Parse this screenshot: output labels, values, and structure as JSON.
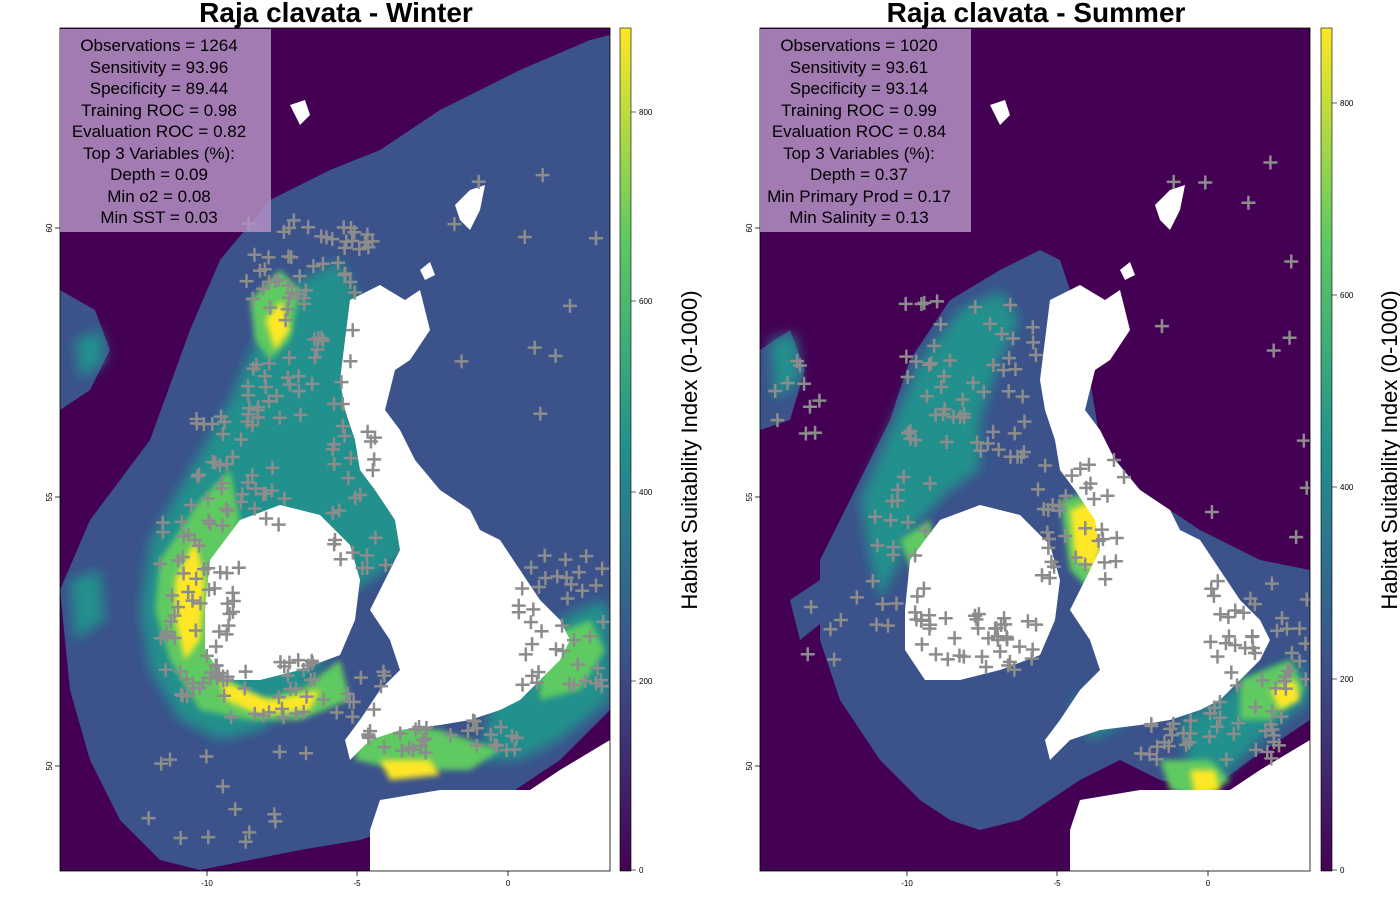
{
  "panels": [
    {
      "title": "Raja clavata - Winter",
      "stats": [
        "Observations = 1264",
        "Sensitivity = 93.96",
        "Specificity = 89.44",
        "Training ROC = 0.98",
        "Evaluation ROC = 0.82",
        "Top 3 Variables (%):",
        "Depth = 0.09",
        "Min o2 = 0.08",
        "Min SST = 0.03"
      ],
      "legend_title": "Habitat Suitability Index (0-1000)",
      "legend_ticks": [
        "0",
        "200",
        "400",
        "600",
        "800"
      ],
      "y_ticks": [
        "50",
        "55",
        "60"
      ],
      "x_ticks": [
        "-10",
        "-5",
        "0"
      ]
    },
    {
      "title": "Raja clavata - Summer",
      "stats": [
        "Observations = 1020",
        "Sensitivity = 93.61",
        "Specificity = 93.14",
        "Training ROC = 0.99",
        "Evaluation ROC = 0.84",
        "Top 3 Variables (%):",
        "Depth = 0.37",
        "Min Primary Prod = 0.17",
        "Min Salinity = 0.13"
      ],
      "legend_title": "Habitat Suitability Index (0-1000)",
      "legend_ticks": [
        "0",
        "200",
        "400",
        "600",
        "800"
      ],
      "y_ticks": [
        "50",
        "55",
        "60"
      ],
      "x_ticks": [
        "-10",
        "-5",
        "0"
      ]
    }
  ],
  "colors": {
    "deep_sea": "#440154",
    "low": "#3b528b",
    "mid": "#21908c",
    "high": "#5ec962",
    "peak": "#fde725",
    "land": "#ffffff",
    "observation_marker": "#8c8c8c",
    "stats_box": "#b491c4"
  }
}
